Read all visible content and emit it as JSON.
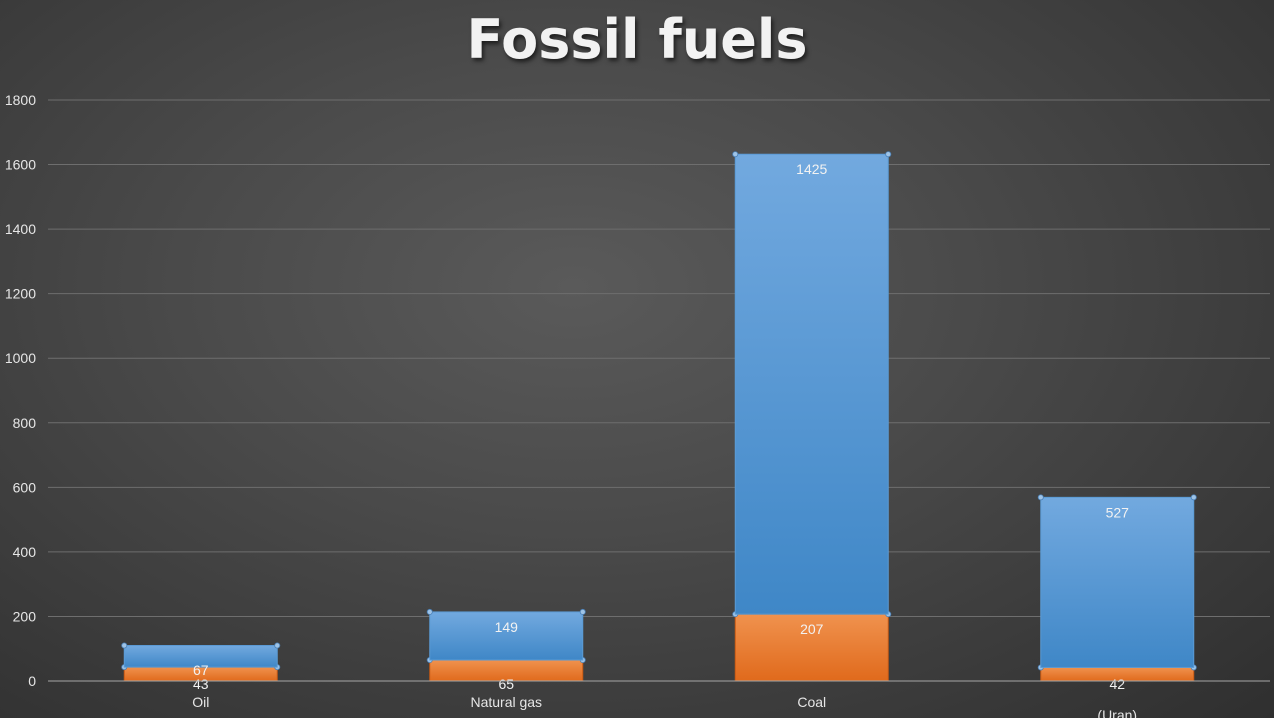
{
  "chart_data": {
    "type": "bar",
    "stacked": true,
    "title": "Fossil fuels",
    "xlabel": "",
    "ylabel": "",
    "categories": [
      "Oil",
      "Natural gas",
      "Coal",
      "(Uran)"
    ],
    "category_lines": [
      [
        "Oil"
      ],
      [
        "Natural gas"
      ],
      [
        "Coal"
      ],
      [
        "",
        "(Uran)"
      ]
    ],
    "series": [
      {
        "color": "#ed7d31",
        "values": [
          43,
          65,
          207,
          42
        ]
      },
      {
        "color": "#5b9bd5",
        "values": [
          67,
          149,
          1425,
          527
        ]
      }
    ],
    "ylim": [
      0,
      1800
    ],
    "yticks": [
      0,
      200,
      400,
      600,
      800,
      1000,
      1200,
      1400,
      1600,
      1800
    ],
    "grid": true,
    "legend": "none"
  }
}
